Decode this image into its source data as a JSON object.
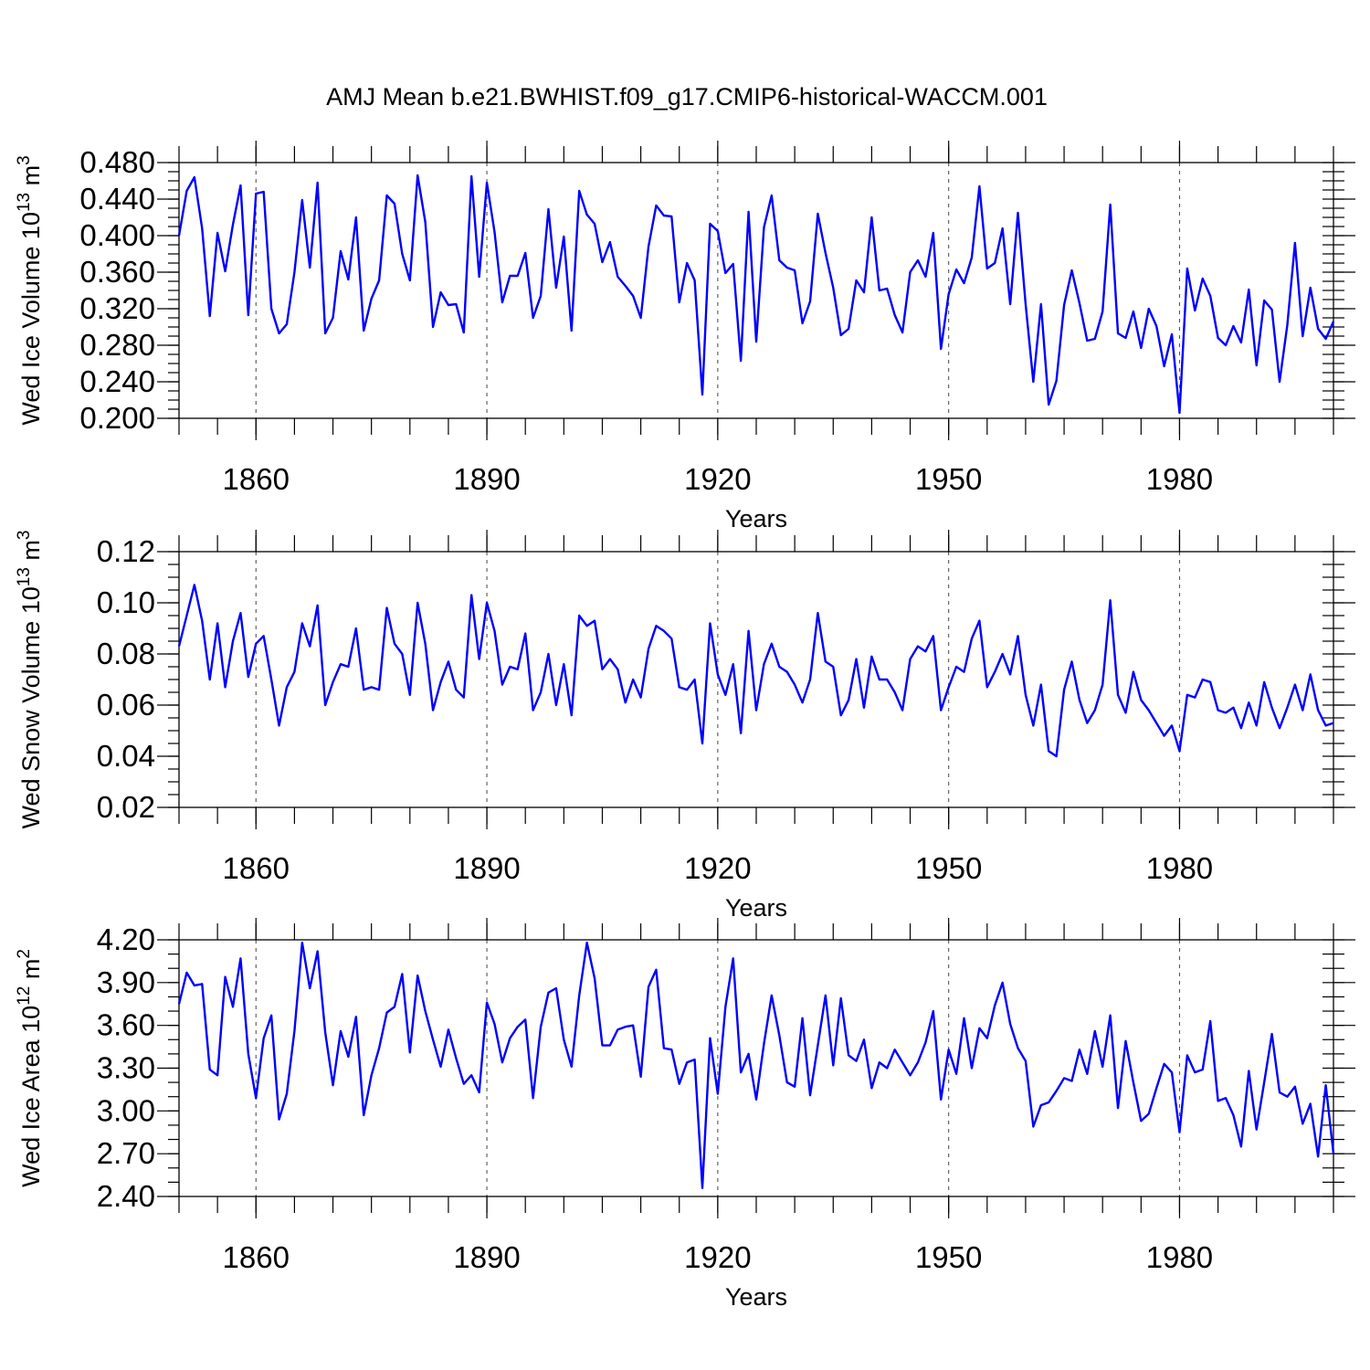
{
  "figure": {
    "title": "AMJ Mean b.e21.BWHIST.f09_g17.CMIP6-historical-WACCM.001"
  },
  "colors": {
    "series": "#0000ff",
    "axes": "#000000"
  },
  "chart_data": [
    {
      "type": "line",
      "ylabel_main": "Wed Ice Volume 10",
      "ylabel_exp": "13",
      "ylabel_unit": " m",
      "ylabel_unit_exp": "3",
      "xlabel": "Years",
      "xlim": [
        1850,
        2000
      ],
      "ylim": [
        0.2,
        0.48
      ],
      "yticks": [
        0.2,
        0.24,
        0.28,
        0.32,
        0.36,
        0.4,
        0.44,
        0.48
      ],
      "ytick_labels": [
        "0.200",
        "0.240",
        "0.280",
        "0.320",
        "0.360",
        "0.400",
        "0.440",
        "0.480"
      ],
      "yminor_step": 0.01,
      "xticks": [
        1860,
        1890,
        1920,
        1950,
        1980
      ],
      "xtick_labels": [
        "1860",
        "1890",
        "1920",
        "1950",
        "1980"
      ],
      "xminor_step": 5,
      "x_start": 1850,
      "series": [
        {
          "name": "Wed Ice Volume",
          "values": [
            0.4,
            0.449,
            0.464,
            0.408,
            0.312,
            0.403,
            0.361,
            0.412,
            0.455,
            0.313,
            0.446,
            0.448,
            0.32,
            0.293,
            0.303,
            0.36,
            0.439,
            0.365,
            0.458,
            0.293,
            0.31,
            0.383,
            0.352,
            0.42,
            0.296,
            0.331,
            0.351,
            0.444,
            0.435,
            0.38,
            0.351,
            0.466,
            0.415,
            0.3,
            0.338,
            0.324,
            0.325,
            0.294,
            0.465,
            0.355,
            0.458,
            0.404,
            0.327,
            0.356,
            0.356,
            0.381,
            0.31,
            0.334,
            0.429,
            0.343,
            0.399,
            0.296,
            0.449,
            0.423,
            0.413,
            0.371,
            0.393,
            0.355,
            0.345,
            0.334,
            0.31,
            0.388,
            0.433,
            0.422,
            0.421,
            0.327,
            0.37,
            0.351,
            0.226,
            0.413,
            0.405,
            0.359,
            0.369,
            0.263,
            0.426,
            0.284,
            0.409,
            0.444,
            0.373,
            0.365,
            0.362,
            0.304,
            0.328,
            0.424,
            0.381,
            0.343,
            0.291,
            0.298,
            0.351,
            0.338,
            0.42,
            0.34,
            0.342,
            0.313,
            0.294,
            0.36,
            0.373,
            0.355,
            0.403,
            0.276,
            0.336,
            0.363,
            0.348,
            0.376,
            0.454,
            0.364,
            0.37,
            0.408,
            0.325,
            0.425,
            0.325,
            0.24,
            0.325,
            0.215,
            0.241,
            0.324,
            0.362,
            0.326,
            0.285,
            0.287,
            0.317,
            0.434,
            0.293,
            0.288,
            0.317,
            0.277,
            0.32,
            0.301,
            0.257,
            0.292,
            0.206,
            0.364,
            0.318,
            0.353,
            0.334,
            0.288,
            0.28,
            0.301,
            0.283,
            0.341,
            0.258,
            0.329,
            0.319,
            0.24,
            0.302,
            0.392,
            0.29,
            0.343,
            0.298,
            0.287,
            0.306
          ]
        }
      ]
    },
    {
      "type": "line",
      "ylabel_main": "Wed Snow Volume 10",
      "ylabel_exp": "13",
      "ylabel_unit": " m",
      "ylabel_unit_exp": "3",
      "xlabel": "Years",
      "xlim": [
        1850,
        2000
      ],
      "ylim": [
        0.02,
        0.12
      ],
      "yticks": [
        0.02,
        0.04,
        0.06,
        0.08,
        0.1,
        0.12
      ],
      "ytick_labels": [
        "0.02",
        "0.04",
        "0.06",
        "0.08",
        "0.10",
        "0.12"
      ],
      "yminor_step": 0.005,
      "xticks": [
        1860,
        1890,
        1920,
        1950,
        1980
      ],
      "xtick_labels": [
        "1860",
        "1890",
        "1920",
        "1950",
        "1980"
      ],
      "xminor_step": 5,
      "x_start": 1850,
      "series": [
        {
          "name": "Wed Snow Volume",
          "values": [
            0.083,
            0.095,
            0.107,
            0.093,
            0.07,
            0.092,
            0.067,
            0.085,
            0.096,
            0.071,
            0.084,
            0.087,
            0.07,
            0.052,
            0.067,
            0.073,
            0.092,
            0.083,
            0.099,
            0.06,
            0.069,
            0.076,
            0.075,
            0.09,
            0.066,
            0.067,
            0.066,
            0.098,
            0.084,
            0.08,
            0.064,
            0.1,
            0.084,
            0.058,
            0.069,
            0.077,
            0.066,
            0.063,
            0.103,
            0.078,
            0.1,
            0.089,
            0.068,
            0.075,
            0.074,
            0.088,
            0.058,
            0.065,
            0.08,
            0.06,
            0.076,
            0.056,
            0.095,
            0.091,
            0.093,
            0.074,
            0.078,
            0.074,
            0.061,
            0.07,
            0.063,
            0.082,
            0.091,
            0.089,
            0.086,
            0.067,
            0.066,
            0.07,
            0.045,
            0.092,
            0.072,
            0.064,
            0.076,
            0.049,
            0.089,
            0.058,
            0.076,
            0.084,
            0.075,
            0.073,
            0.068,
            0.061,
            0.07,
            0.096,
            0.077,
            0.075,
            0.056,
            0.062,
            0.078,
            0.059,
            0.079,
            0.07,
            0.07,
            0.065,
            0.058,
            0.078,
            0.083,
            0.081,
            0.087,
            0.058,
            0.067,
            0.075,
            0.073,
            0.086,
            0.093,
            0.067,
            0.073,
            0.08,
            0.072,
            0.087,
            0.064,
            0.052,
            0.068,
            0.042,
            0.04,
            0.066,
            0.077,
            0.062,
            0.053,
            0.058,
            0.068,
            0.101,
            0.064,
            0.057,
            0.073,
            0.062,
            0.058,
            0.053,
            0.048,
            0.052,
            0.042,
            0.064,
            0.063,
            0.07,
            0.069,
            0.058,
            0.057,
            0.059,
            0.051,
            0.061,
            0.052,
            0.069,
            0.059,
            0.051,
            0.059,
            0.068,
            0.058,
            0.072,
            0.058,
            0.052,
            0.053
          ]
        }
      ]
    },
    {
      "type": "line",
      "ylabel_main": "Wed Ice Area 10",
      "ylabel_exp": "12",
      "ylabel_unit": " m",
      "ylabel_unit_exp": "2",
      "xlabel": "Years",
      "xlim": [
        1850,
        2000
      ],
      "ylim": [
        2.4,
        4.2
      ],
      "yticks": [
        2.4,
        2.7,
        3.0,
        3.3,
        3.6,
        3.9,
        4.2
      ],
      "ytick_labels": [
        "2.40",
        "2.70",
        "3.00",
        "3.30",
        "3.60",
        "3.90",
        "4.20"
      ],
      "yminor_step": 0.1,
      "xticks": [
        1860,
        1890,
        1920,
        1950,
        1980
      ],
      "xtick_labels": [
        "1860",
        "1890",
        "1920",
        "1950",
        "1980"
      ],
      "xminor_step": 5,
      "x_start": 1850,
      "series": [
        {
          "name": "Wed Ice Area",
          "values": [
            3.75,
            3.97,
            3.88,
            3.89,
            3.29,
            3.25,
            3.94,
            3.73,
            4.07,
            3.4,
            3.09,
            3.51,
            3.67,
            2.94,
            3.12,
            3.56,
            4.18,
            3.86,
            4.12,
            3.55,
            3.18,
            3.56,
            3.38,
            3.66,
            2.97,
            3.25,
            3.44,
            3.69,
            3.73,
            3.96,
            3.41,
            3.95,
            3.7,
            3.5,
            3.31,
            3.57,
            3.37,
            3.19,
            3.25,
            3.13,
            3.76,
            3.61,
            3.34,
            3.51,
            3.59,
            3.64,
            3.09,
            3.59,
            3.83,
            3.86,
            3.5,
            3.31,
            3.81,
            4.18,
            3.93,
            3.46,
            3.46,
            3.57,
            3.59,
            3.6,
            3.24,
            3.87,
            3.99,
            3.44,
            3.43,
            3.19,
            3.34,
            3.36,
            2.46,
            3.51,
            3.12,
            3.73,
            4.07,
            3.27,
            3.4,
            3.08,
            3.47,
            3.81,
            3.53,
            3.2,
            3.17,
            3.65,
            3.11,
            3.46,
            3.81,
            3.32,
            3.79,
            3.39,
            3.35,
            3.5,
            3.16,
            3.34,
            3.3,
            3.43,
            3.34,
            3.25,
            3.34,
            3.48,
            3.7,
            3.08,
            3.43,
            3.26,
            3.65,
            3.3,
            3.58,
            3.51,
            3.74,
            3.9,
            3.61,
            3.44,
            3.35,
            2.89,
            3.04,
            3.06,
            3.14,
            3.23,
            3.21,
            3.43,
            3.26,
            3.56,
            3.31,
            3.67,
            3.02,
            3.49,
            3.2,
            2.93,
            2.98,
            3.16,
            3.33,
            3.27,
            2.85,
            3.39,
            3.27,
            3.29,
            3.63,
            3.07,
            3.09,
            2.97,
            2.75,
            3.28,
            2.87,
            3.2,
            3.54,
            3.13,
            3.1,
            3.17,
            2.91,
            3.05,
            2.68,
            3.18,
            2.7
          ]
        }
      ]
    }
  ]
}
